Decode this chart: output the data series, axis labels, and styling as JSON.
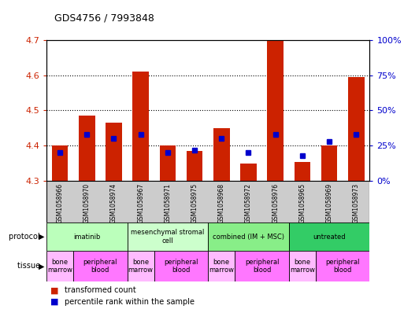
{
  "title": "GDS4756 / 7993848",
  "samples": [
    "GSM1058966",
    "GSM1058970",
    "GSM1058974",
    "GSM1058967",
    "GSM1058971",
    "GSM1058975",
    "GSM1058968",
    "GSM1058972",
    "GSM1058976",
    "GSM1058965",
    "GSM1058969",
    "GSM1058973"
  ],
  "bar_values": [
    4.4,
    4.485,
    4.465,
    4.61,
    4.4,
    4.385,
    4.45,
    4.348,
    4.7,
    4.353,
    4.4,
    4.595
  ],
  "percentile_values": [
    20,
    33,
    30,
    33,
    20,
    22,
    30,
    20,
    33,
    18,
    28,
    33
  ],
  "ylim_left": [
    4.3,
    4.7
  ],
  "ylim_right": [
    0,
    100
  ],
  "yticks_left": [
    4.3,
    4.4,
    4.5,
    4.6,
    4.7
  ],
  "yticks_right": [
    0,
    25,
    50,
    75,
    100
  ],
  "ytick_labels_right": [
    "0%",
    "25%",
    "50%",
    "75%",
    "100%"
  ],
  "bar_color": "#cc2200",
  "percentile_color": "#0000cc",
  "bar_bottom": 4.3,
  "protocol_data": [
    {
      "label": "imatinib",
      "start": 0,
      "end": 3,
      "color": "#bbffbb"
    },
    {
      "label": "mesenchymal stromal\ncell",
      "start": 3,
      "end": 6,
      "color": "#ccffcc"
    },
    {
      "label": "combined (IM + MSC)",
      "start": 6,
      "end": 9,
      "color": "#88ee88"
    },
    {
      "label": "untreated",
      "start": 9,
      "end": 12,
      "color": "#33cc66"
    }
  ],
  "tissue_data": [
    {
      "label": "bone\nmarrow",
      "start": 0,
      "end": 1,
      "color": "#ffbbff"
    },
    {
      "label": "peripheral\nblood",
      "start": 1,
      "end": 3,
      "color": "#ff77ff"
    },
    {
      "label": "bone\nmarrow",
      "start": 3,
      "end": 4,
      "color": "#ffbbff"
    },
    {
      "label": "peripheral\nblood",
      "start": 4,
      "end": 6,
      "color": "#ff77ff"
    },
    {
      "label": "bone\nmarrow",
      "start": 6,
      "end": 7,
      "color": "#ffbbff"
    },
    {
      "label": "peripheral\nblood",
      "start": 7,
      "end": 9,
      "color": "#ff77ff"
    },
    {
      "label": "bone\nmarrow",
      "start": 9,
      "end": 10,
      "color": "#ffbbff"
    },
    {
      "label": "peripheral\nblood",
      "start": 10,
      "end": 12,
      "color": "#ff77ff"
    }
  ],
  "legend_red": "transformed count",
  "legend_blue": "percentile rank within the sample",
  "left_tick_color": "#cc2200",
  "right_tick_color": "#0000cc",
  "sample_box_color": "#cccccc"
}
